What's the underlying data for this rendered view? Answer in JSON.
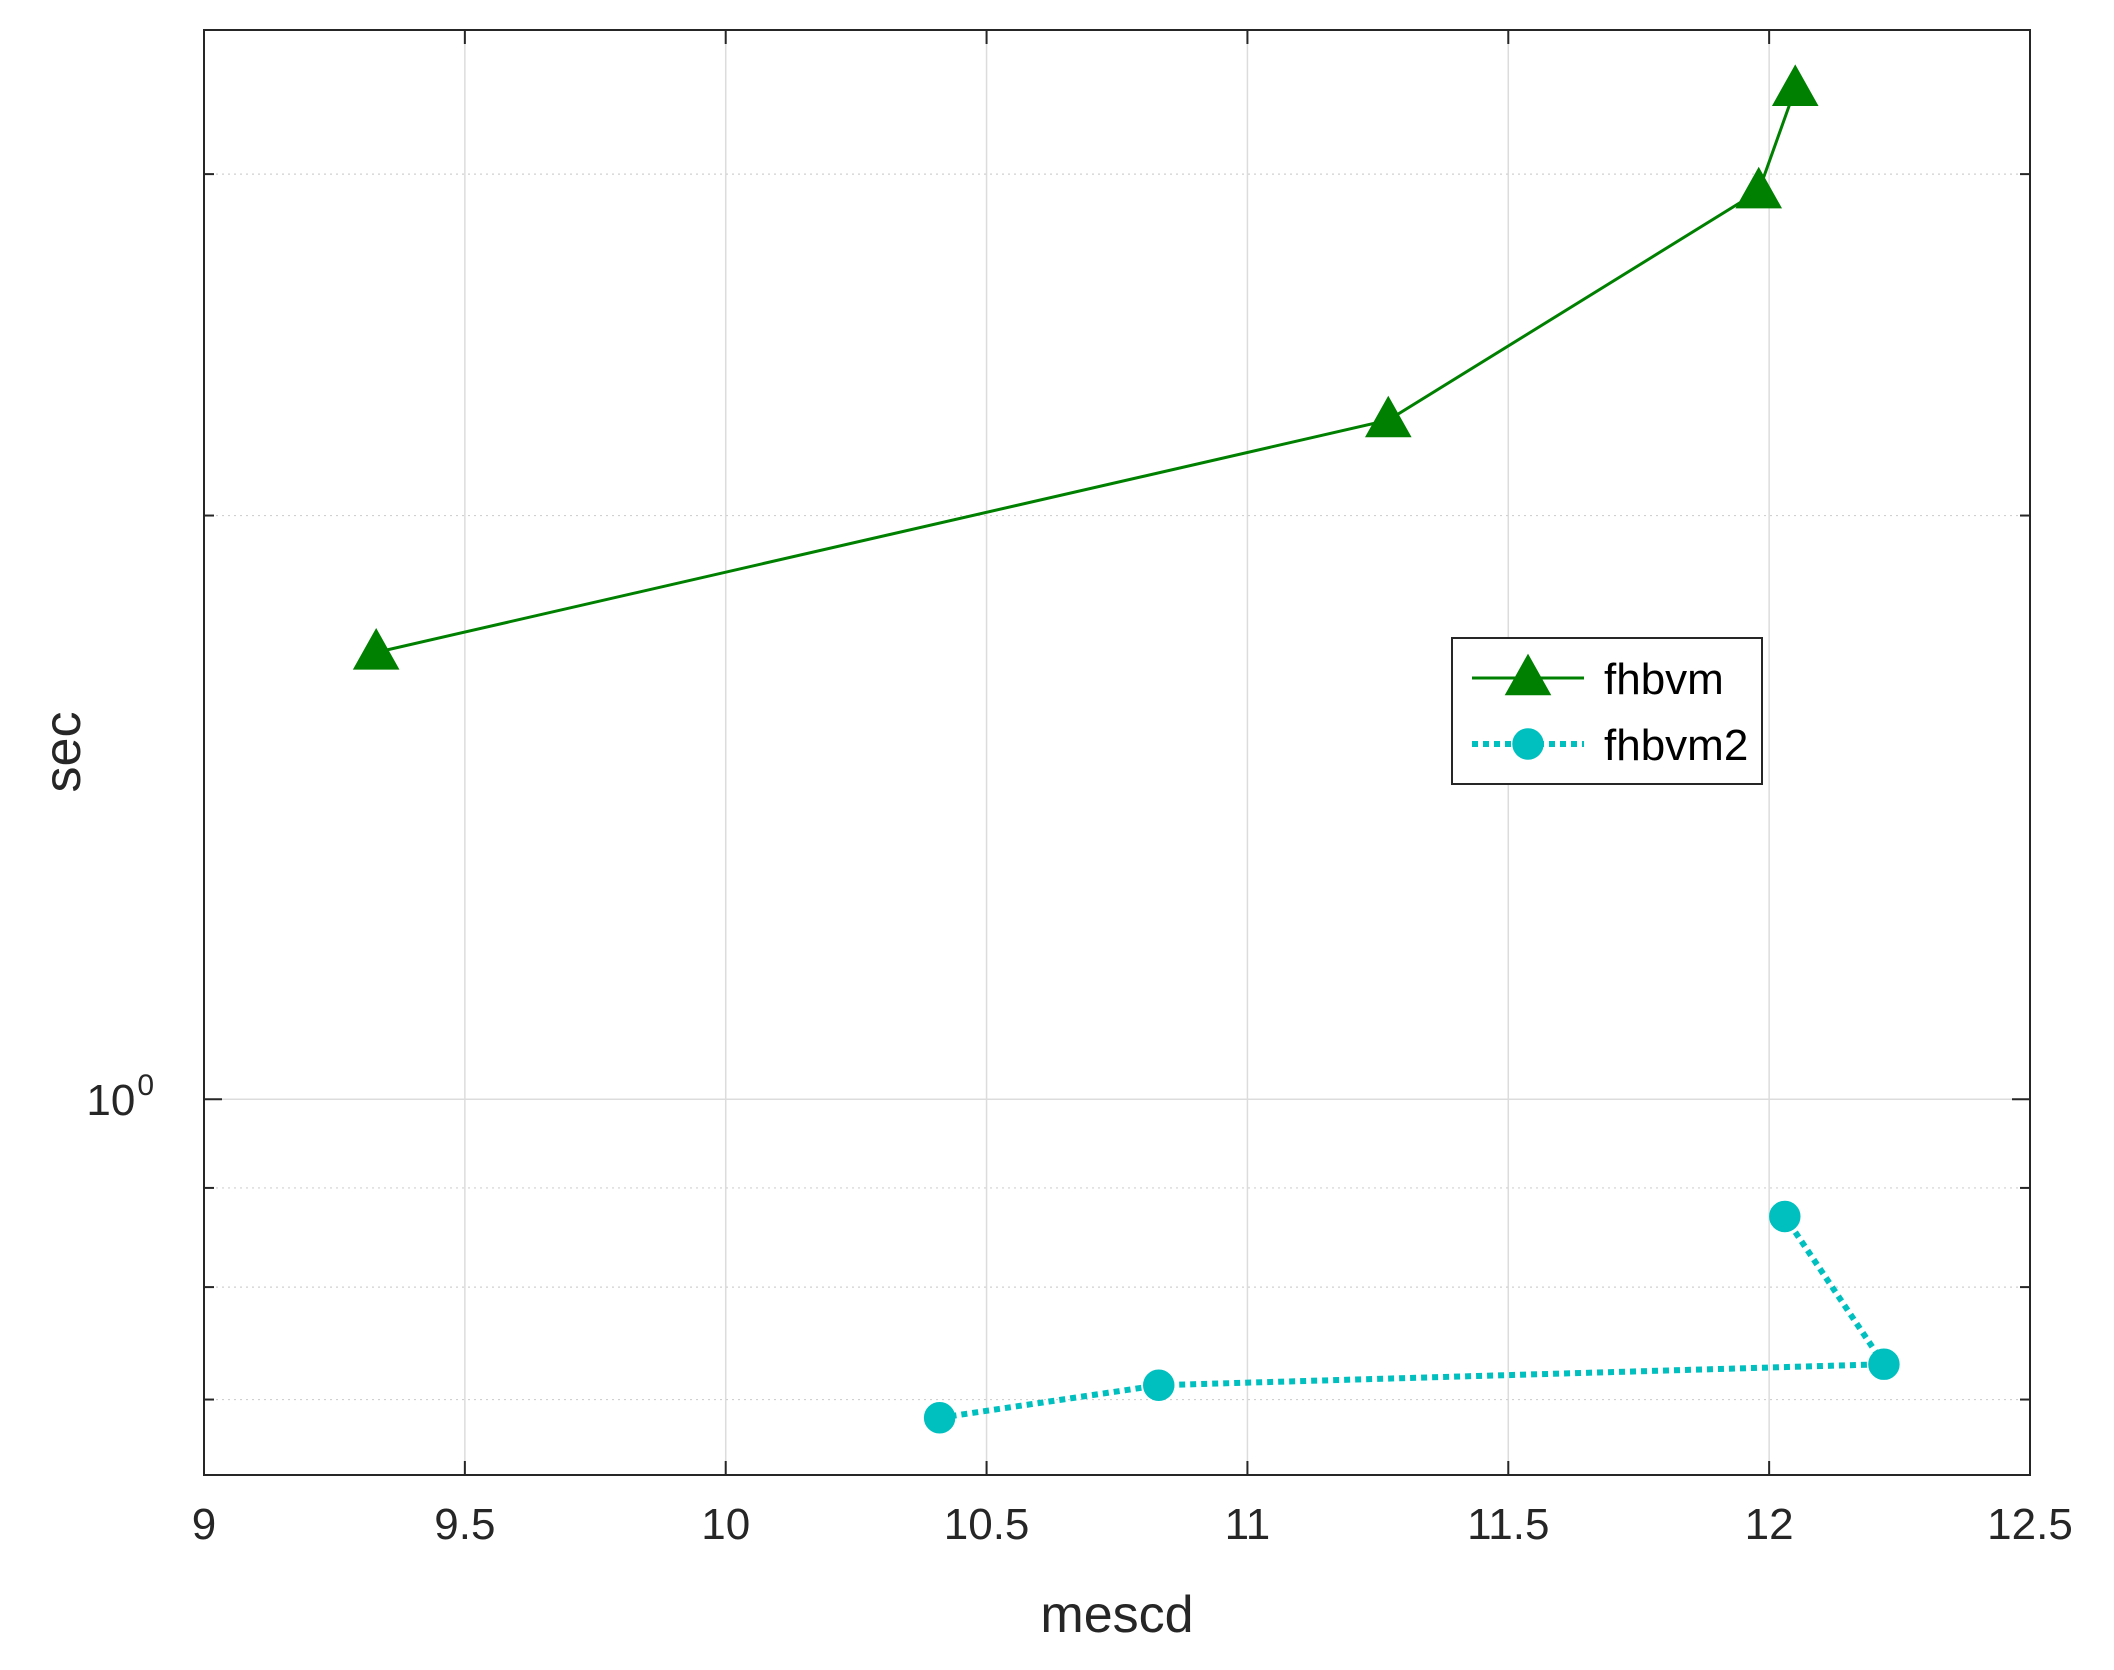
{
  "chart_data": {
    "type": "line",
    "xlabel": "mescd",
    "ylabel": "sec",
    "xlim": [
      9,
      12.5
    ],
    "ylim": [
      0.64,
      3.56
    ],
    "y_scale": "log",
    "x_ticks": [
      9,
      9.5,
      10,
      10.5,
      11,
      11.5,
      12,
      12.5
    ],
    "x_tick_labels": [
      "9",
      "9.5",
      "10",
      "10.5",
      "11",
      "11.5",
      "12",
      "12.5"
    ],
    "y_ticks": [
      1
    ],
    "y_tick_label": {
      "base": "10",
      "exponent": "0"
    },
    "y_minor_ticks": [
      0.7,
      0.8,
      0.9,
      2,
      3
    ],
    "grid": true,
    "legend_position": "right",
    "series": [
      {
        "name": "fhbvm",
        "color": "#008000",
        "line_style": "solid",
        "marker": "triangle",
        "x": [
          9.33,
          11.27,
          11.98,
          12.05
        ],
        "y": [
          1.7,
          2.24,
          2.94,
          3.32
        ]
      },
      {
        "name": "fhbvm2",
        "color": "#00BFBF",
        "line_style": "dotted",
        "marker": "circle",
        "x": [
          10.41,
          10.83,
          12.22,
          12.03
        ],
        "y": [
          0.685,
          0.712,
          0.73,
          0.87
        ]
      }
    ]
  }
}
